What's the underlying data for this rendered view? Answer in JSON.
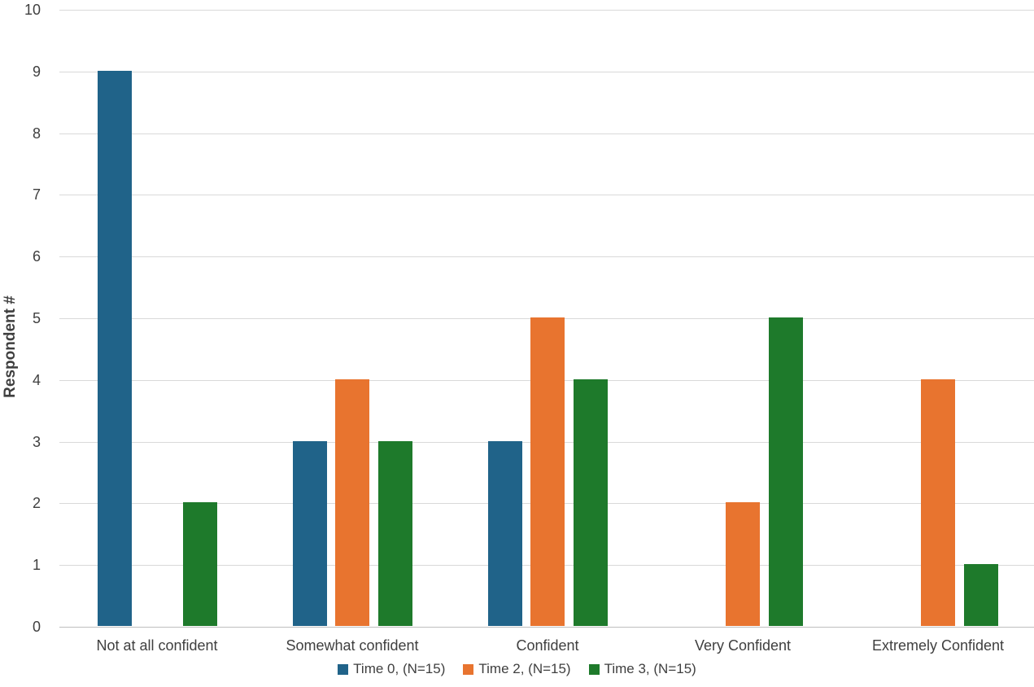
{
  "chart_data": {
    "type": "bar",
    "title": "",
    "xlabel": "",
    "ylabel": "Respondent #",
    "ylim": [
      0,
      10
    ],
    "yticks": [
      0,
      1,
      2,
      3,
      4,
      5,
      6,
      7,
      8,
      9,
      10
    ],
    "grid": true,
    "legend_position": "bottom",
    "categories": [
      "Not at all confident",
      "Somewhat confident",
      "Confident",
      "Very Confident",
      "Extremely Confident"
    ],
    "series": [
      {
        "name": "Time 0,  (N=15)",
        "color": "#206389",
        "values": [
          9,
          3,
          3,
          0,
          0
        ]
      },
      {
        "name": "Time 2,  (N=15)",
        "color": "#E8742F",
        "values": [
          0,
          4,
          5,
          2,
          4
        ]
      },
      {
        "name": "Time 3,  (N=15)",
        "color": "#1E7A2B",
        "values": [
          2,
          3,
          4,
          5,
          1
        ]
      }
    ],
    "colors": {
      "gridline": "#d9d9d9",
      "baseline": "#bfbfbf",
      "text": "#3f3f3f"
    }
  }
}
